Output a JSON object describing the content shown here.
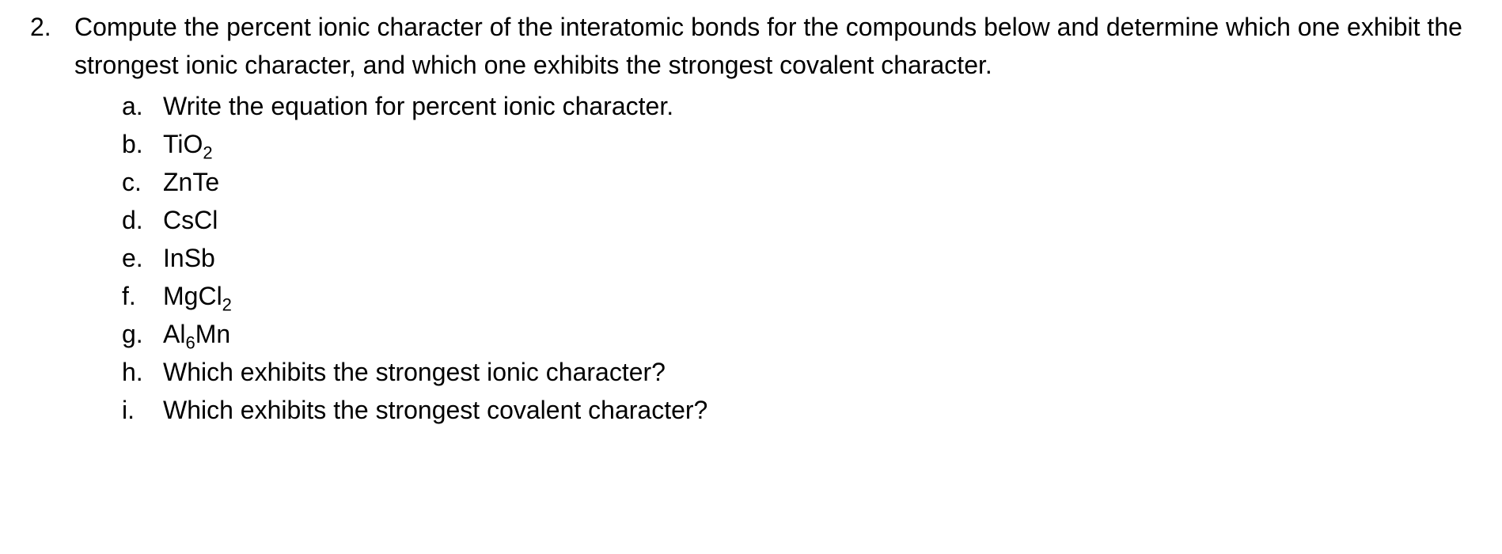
{
  "question": {
    "number": "2.",
    "text": "Compute the percent ionic character of the interatomic bonds for the compounds below and determine which one exhibit the strongest ionic character, and which one exhibits the strongest covalent character."
  },
  "subItems": [
    {
      "letter": "a.",
      "text": "Write the equation for percent ionic character."
    },
    {
      "letter": "b.",
      "text": "TiO",
      "sub": "2"
    },
    {
      "letter": "c.",
      "text": "ZnTe"
    },
    {
      "letter": "d.",
      "text": "CsCl"
    },
    {
      "letter": "e.",
      "text": "InSb"
    },
    {
      "letter": "f.",
      "text": "MgCl",
      "sub": "2"
    },
    {
      "letter": "g.",
      "text": "Al",
      "sub": "6",
      "textAfter": "Mn"
    },
    {
      "letter": "h.",
      "text": "Which exhibits the strongest ionic character?"
    },
    {
      "letter": "i.",
      "text": "Which exhibits the strongest covalent character?"
    }
  ],
  "style": {
    "font_family": "Segoe UI, Tahoma, Geneva, Verdana, sans-serif",
    "font_size_pt": 24,
    "text_color": "#000000",
    "background_color": "#ffffff",
    "line_height": 1.5
  }
}
